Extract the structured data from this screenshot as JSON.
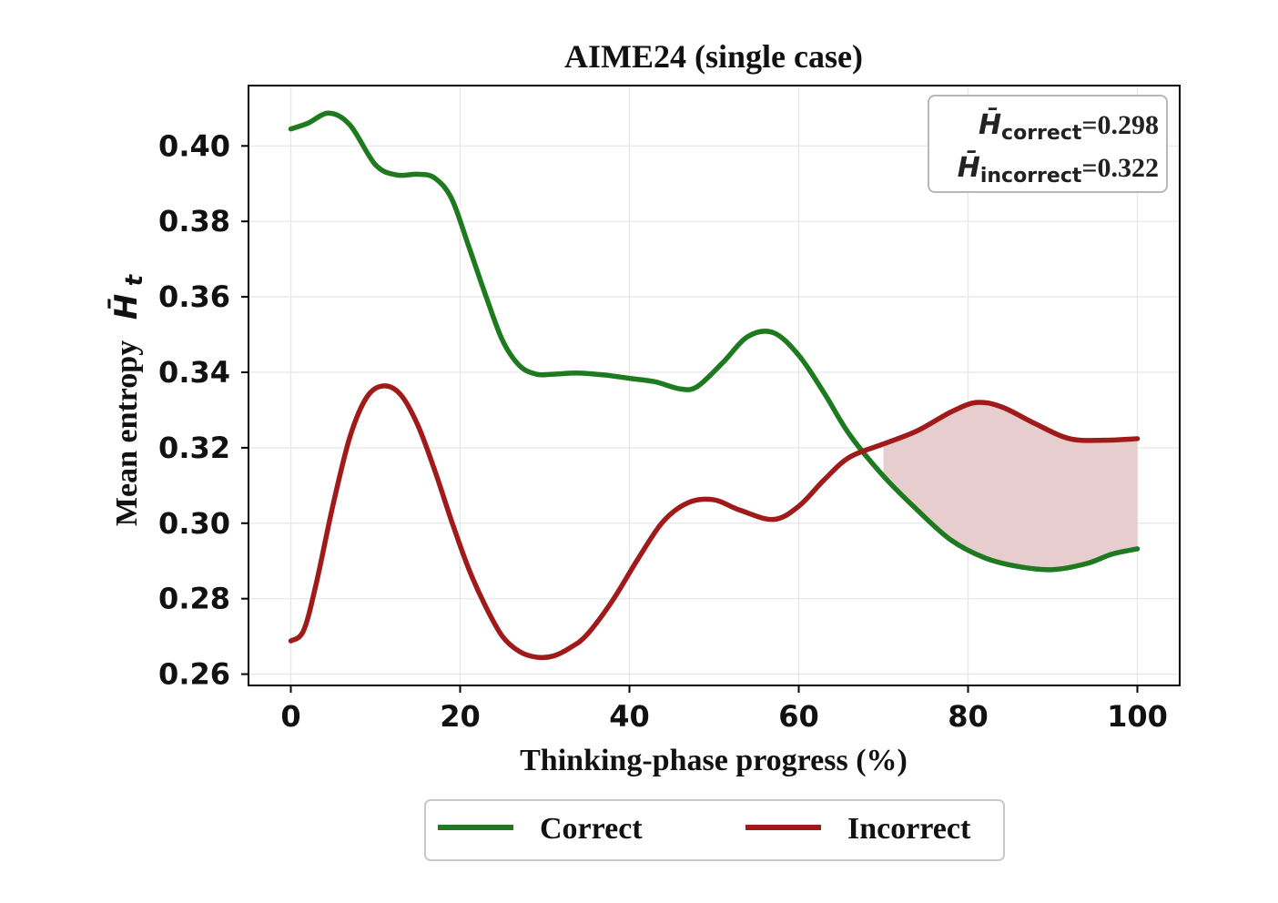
{
  "chart_data": {
    "type": "line",
    "title": "AIME24 (single case)",
    "xlabel": "Thinking-phase progress (%)",
    "ylabel": "Mean entropy",
    "ylabel_symbol": "H̄",
    "ylabel_subscript": "t",
    "xlim": [
      -5,
      105
    ],
    "ylim": [
      0.257,
      0.416
    ],
    "xticks": [
      0,
      20,
      40,
      60,
      80,
      100
    ],
    "xtick_labels": [
      "0",
      "20",
      "40",
      "60",
      "80",
      "100"
    ],
    "yticks": [
      0.26,
      0.28,
      0.3,
      0.32,
      0.34,
      0.36,
      0.38,
      0.4
    ],
    "ytick_labels": [
      "0.26",
      "0.28",
      "0.30",
      "0.32",
      "0.34",
      "0.36",
      "0.38",
      "0.40"
    ],
    "grid": true,
    "legend_position": "bottom, below axes",
    "shaded_region": {
      "between": [
        "Correct",
        "Incorrect"
      ],
      "x_from": 70,
      "x_to": 100,
      "color": "#e8cdcf"
    },
    "annotation": {
      "position": "top-right",
      "lines": [
        {
          "symbol": "H̄",
          "subscript": "correct",
          "value": "=0.298"
        },
        {
          "symbol": "H̄",
          "subscript": "incorrect",
          "value": "=0.322"
        }
      ]
    },
    "series": [
      {
        "name": "Correct",
        "color": "#1e7a1e",
        "x": [
          0,
          2,
          4.5,
          7,
          10,
          12.5,
          15,
          17,
          19,
          21,
          23,
          25,
          27,
          29,
          31,
          34,
          37,
          40,
          43,
          46,
          48,
          51,
          54,
          57,
          60,
          63,
          66,
          70,
          74,
          78,
          82,
          86,
          90,
          94,
          97,
          100
        ],
        "y": [
          0.4045,
          0.406,
          0.4087,
          0.4055,
          0.395,
          0.3923,
          0.3925,
          0.3915,
          0.386,
          0.3735,
          0.3605,
          0.3485,
          0.3418,
          0.3395,
          0.3395,
          0.3398,
          0.3393,
          0.3384,
          0.3375,
          0.3356,
          0.3362,
          0.3425,
          0.3495,
          0.3505,
          0.3445,
          0.3345,
          0.3235,
          0.3125,
          0.3035,
          0.2955,
          0.2908,
          0.2885,
          0.2877,
          0.2893,
          0.2918,
          0.2932
        ]
      },
      {
        "name": "Incorrect",
        "color": "#a01a1a",
        "x": [
          0,
          1.5,
          3,
          5,
          7,
          9,
          11,
          13,
          15,
          17,
          19,
          21,
          23,
          25,
          27,
          29,
          31,
          33,
          35,
          38,
          41,
          44,
          47,
          50,
          53,
          57,
          60,
          63,
          66,
          70,
          74,
          78,
          81,
          84,
          88,
          92,
          96,
          100
        ],
        "y": [
          0.2688,
          0.2715,
          0.284,
          0.305,
          0.323,
          0.3335,
          0.3364,
          0.334,
          0.326,
          0.314,
          0.3005,
          0.288,
          0.278,
          0.27,
          0.266,
          0.2645,
          0.2648,
          0.267,
          0.2705,
          0.2795,
          0.2905,
          0.3005,
          0.3055,
          0.3062,
          0.3035,
          0.301,
          0.3045,
          0.3115,
          0.3175,
          0.321,
          0.3245,
          0.3295,
          0.332,
          0.3308,
          0.3263,
          0.3224,
          0.322,
          0.3224
        ]
      }
    ]
  }
}
